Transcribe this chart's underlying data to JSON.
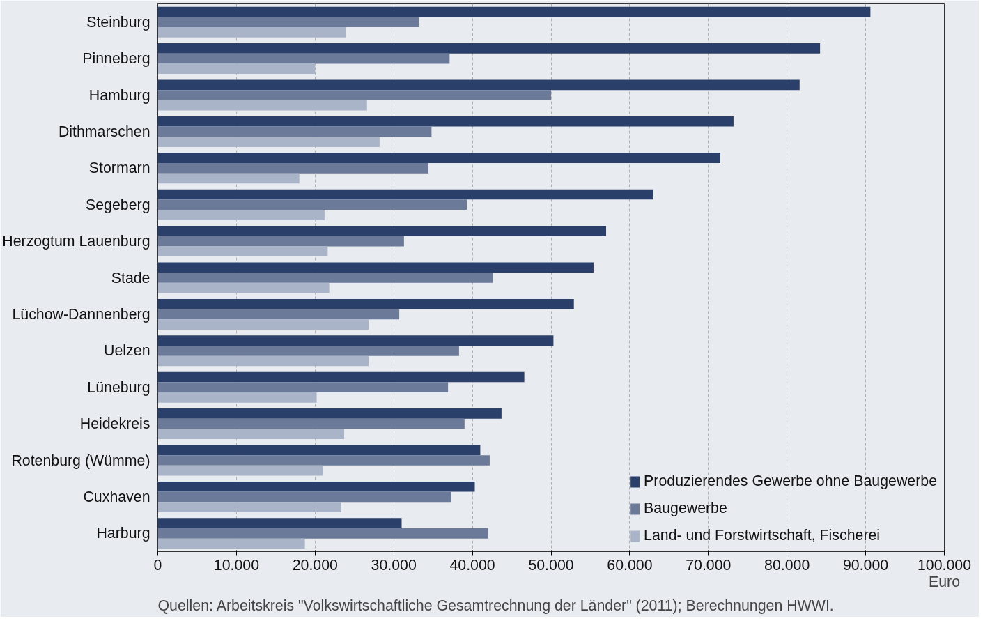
{
  "chart_data": {
    "type": "bar",
    "orientation": "horizontal",
    "categories": [
      "Steinburg",
      "Pinneberg",
      "Hamburg",
      "Dithmarschen",
      "Stormarn",
      "Segeberg",
      "Herzogtum Lauenburg",
      "Stade",
      "Lüchow-Dannenberg",
      "Uelzen",
      "Lüneburg",
      "Heidekreis",
      "Rotenburg (Wümme)",
      "Cuxhaven",
      "Harburg"
    ],
    "series": [
      {
        "name": "Produzierendes Gewerbe ohne Baugewerbe",
        "color": "#2b3f6b",
        "values": [
          90600,
          84200,
          81600,
          73200,
          71500,
          63000,
          57000,
          55400,
          52900,
          50300,
          46600,
          43700,
          41000,
          40300,
          31000
        ]
      },
      {
        "name": "Baugewerbe",
        "color": "#6b7a99",
        "values": [
          33200,
          37100,
          50000,
          34800,
          34400,
          39300,
          31300,
          42600,
          30700,
          38300,
          36900,
          39000,
          42200,
          37300,
          42000
        ]
      },
      {
        "name": "Land- und Forstwirtschaft, Fischerei",
        "color": "#a9b4c8",
        "values": [
          23900,
          20000,
          26600,
          28200,
          18000,
          21200,
          21600,
          21800,
          26800,
          26800,
          20200,
          23700,
          21000,
          23300,
          18700
        ]
      }
    ],
    "xlim": [
      0,
      100000
    ],
    "xticks": [
      0,
      {
        "value": 10000,
        "label": "10.000"
      },
      {
        "value": 20000,
        "label": "20.000"
      },
      {
        "value": 30000,
        "label": "30.000"
      },
      {
        "value": 40000,
        "label": "40.000"
      },
      {
        "value": 50000,
        "label": "50.000"
      },
      {
        "value": 60000,
        "label": "60.000"
      },
      {
        "value": 70000,
        "label": "70.000"
      },
      {
        "value": 80000,
        "label": "80.000"
      },
      {
        "value": 90000,
        "label": "90.000"
      },
      {
        "value": 100000,
        "label": "100.000"
      }
    ],
    "xlabel": "Euro",
    "grid": "x",
    "legend": "bottom right",
    "annotations": [
      "Quellen: Arbeitskreis \"Volkswirtschaftliche Gesamtrechnung der Länder\" (2011); Berechnungen HWWI."
    ]
  }
}
